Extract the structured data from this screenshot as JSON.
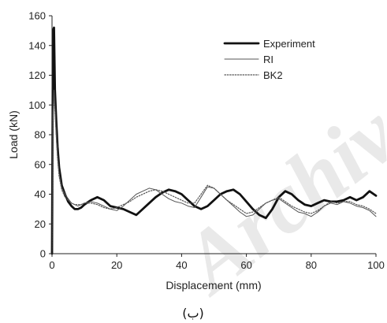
{
  "chart_data": {
    "type": "line",
    "xlabel": "Displacement (mm)",
    "ylabel": "Load (kN)",
    "xlim": [
      0,
      100
    ],
    "ylim": [
      0,
      160
    ],
    "xticks": [
      0,
      20,
      40,
      60,
      80,
      100
    ],
    "yticks": [
      0,
      20,
      40,
      60,
      80,
      100,
      120,
      140,
      160
    ],
    "grid": false,
    "legend_position": "top-right",
    "caption": "(ب)",
    "watermark": "Archive",
    "series": [
      {
        "name": "Experiment",
        "style": "thick-solid",
        "color": "#111111",
        "x": [
          0,
          0.3,
          0.6,
          0.9,
          1.3,
          1.7,
          2.2,
          3,
          4,
          5,
          6,
          7,
          8,
          9,
          10,
          12,
          14,
          16,
          18,
          20,
          22,
          24,
          26,
          28,
          30,
          32,
          34,
          36,
          38,
          40,
          42,
          44,
          46,
          48,
          50,
          52,
          54,
          56,
          58,
          60,
          62,
          64,
          66,
          68,
          70,
          72,
          74,
          76,
          78,
          80,
          82,
          84,
          86,
          88,
          90,
          92,
          94,
          96,
          98,
          100
        ],
        "y": [
          0,
          150,
          152,
          110,
          90,
          72,
          58,
          46,
          40,
          35,
          32,
          30,
          30,
          31,
          33,
          36,
          38,
          36,
          32,
          31,
          30,
          28,
          26,
          30,
          34,
          38,
          41,
          43,
          42,
          40,
          36,
          32,
          30,
          32,
          36,
          40,
          42,
          43,
          40,
          35,
          30,
          26,
          24,
          30,
          38,
          42,
          40,
          36,
          33,
          32,
          34,
          36,
          35,
          35,
          36,
          38,
          36,
          38,
          42,
          39
        ]
      },
      {
        "name": "RI",
        "style": "thin-solid",
        "color": "#555555",
        "x": [
          0,
          0.3,
          0.6,
          0.9,
          1.3,
          1.7,
          2.2,
          3,
          4,
          5,
          6,
          7,
          8,
          9,
          10,
          12,
          14,
          16,
          18,
          20,
          22,
          24,
          26,
          28,
          30,
          32,
          34,
          36,
          38,
          40,
          42,
          44,
          46,
          48,
          50,
          52,
          54,
          56,
          58,
          60,
          62,
          64,
          66,
          68,
          70,
          72,
          74,
          76,
          78,
          80,
          82,
          84,
          86,
          88,
          90,
          92,
          94,
          96,
          98,
          100
        ],
        "y": [
          0,
          95,
          110,
          100,
          82,
          66,
          54,
          44,
          40,
          37,
          34,
          33,
          32,
          33,
          34,
          35,
          34,
          32,
          30,
          29,
          32,
          36,
          40,
          42,
          44,
          43,
          40,
          37,
          35,
          34,
          32,
          31,
          38,
          45,
          44,
          40,
          36,
          32,
          28,
          25,
          26,
          30,
          34,
          36,
          37,
          34,
          31,
          28,
          27,
          25,
          28,
          32,
          34,
          33,
          35,
          34,
          32,
          31,
          29,
          25
        ]
      },
      {
        "name": "BK2",
        "style": "dotted",
        "color": "#555555",
        "x": [
          0,
          0.3,
          0.6,
          0.9,
          1.3,
          1.7,
          2.2,
          3,
          4,
          5,
          6,
          7,
          8,
          9,
          10,
          12,
          14,
          16,
          18,
          20,
          22,
          24,
          26,
          28,
          30,
          32,
          34,
          36,
          38,
          40,
          42,
          44,
          46,
          48,
          50,
          52,
          54,
          56,
          58,
          60,
          62,
          64,
          66,
          68,
          70,
          72,
          74,
          76,
          78,
          80,
          82,
          84,
          86,
          88,
          90,
          92,
          94,
          96,
          98,
          100
        ],
        "y": [
          0,
          90,
          105,
          96,
          80,
          64,
          52,
          43,
          38,
          36,
          34,
          33,
          33,
          33,
          34,
          34,
          33,
          31,
          30,
          31,
          33,
          35,
          38,
          40,
          42,
          43,
          42,
          40,
          38,
          36,
          34,
          34,
          40,
          46,
          44,
          40,
          36,
          33,
          30,
          27,
          28,
          31,
          34,
          36,
          38,
          35,
          32,
          30,
          28,
          27,
          29,
          32,
          35,
          34,
          35,
          35,
          33,
          32,
          30,
          27
        ]
      }
    ]
  }
}
